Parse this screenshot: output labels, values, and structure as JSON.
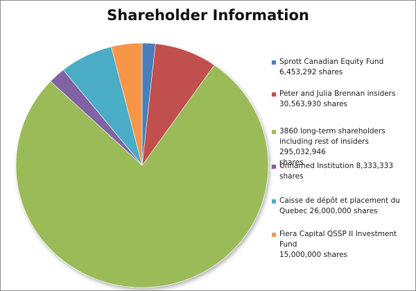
{
  "chart_data": {
    "type": "pie",
    "title": "Shareholder Information",
    "legend_position": "right",
    "slices": [
      {
        "lines": [
          "Sprott Canadian Equity Fund",
          "6,453,292 shares"
        ],
        "value": 6453292,
        "color": "#4a7ebb"
      },
      {
        "lines": [
          "Peter and Julia Brennan insiders",
          "30,563,930 shares"
        ],
        "value": 30563930,
        "color": "#c0504d"
      },
      {
        "lines": [
          "3860 long-term shareholders",
          "including rest of insiders 295,032,946",
          "shares"
        ],
        "value": 295032946,
        "color": "#9bbb59"
      },
      {
        "lines": [
          "Unnamed Institution 8,333,333 shares"
        ],
        "value": 8333333,
        "color": "#8064a2"
      },
      {
        "lines": [
          "Caisse de dépôt et placement du",
          "Quebec 26,000,000 shares"
        ],
        "value": 26000000,
        "color": "#4bacc6"
      },
      {
        "lines": [
          "Fiera Capital QSSP II Investment Fund",
          "15,000,000 shares"
        ],
        "value": 15000000,
        "color": "#f79646"
      }
    ]
  }
}
